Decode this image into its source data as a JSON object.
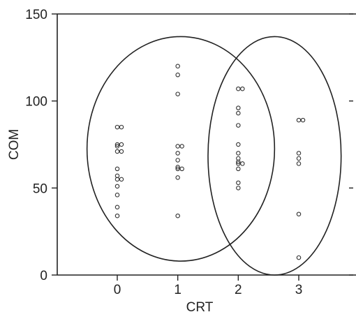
{
  "chart_data": {
    "type": "scatter",
    "title": "",
    "xlabel": "CRT",
    "ylabel": "COM",
    "xlim": [
      -1,
      4
    ],
    "ylim": [
      0,
      150
    ],
    "x_ticks": [
      0,
      1,
      2,
      3
    ],
    "y_ticks": [
      0,
      50,
      100,
      150
    ],
    "x_tick_labels": [
      "0",
      "1",
      "2",
      "3"
    ],
    "y_tick_labels": [
      "0",
      "50",
      "100",
      "150"
    ],
    "grid": false,
    "colors": {
      "points": "#333333",
      "lines": "#222222"
    },
    "series": [
      {
        "points": [
          [
            0,
            85
          ],
          [
            0,
            85
          ],
          [
            0,
            75
          ],
          [
            0,
            75
          ],
          [
            0,
            71
          ],
          [
            0,
            71
          ],
          [
            0,
            74
          ],
          [
            0,
            61
          ],
          [
            0,
            57
          ],
          [
            0,
            55
          ],
          [
            0,
            55
          ],
          [
            0,
            51
          ],
          [
            0,
            46
          ],
          [
            0,
            39
          ],
          [
            0,
            34
          ],
          [
            1,
            120
          ],
          [
            1,
            115
          ],
          [
            1,
            104
          ],
          [
            1,
            74
          ],
          [
            1,
            74
          ],
          [
            1,
            70
          ],
          [
            1,
            66
          ],
          [
            1,
            62
          ],
          [
            1,
            61
          ],
          [
            1,
            61
          ],
          [
            1,
            56
          ],
          [
            1,
            34
          ],
          [
            2,
            107
          ],
          [
            2,
            107
          ],
          [
            2,
            96
          ],
          [
            2,
            93
          ],
          [
            2,
            86
          ],
          [
            2,
            75
          ],
          [
            2,
            70
          ],
          [
            2,
            67
          ],
          [
            2,
            65
          ],
          [
            2,
            64
          ],
          [
            2,
            61
          ],
          [
            2,
            53
          ],
          [
            2,
            50
          ],
          [
            2,
            64
          ],
          [
            3,
            89
          ],
          [
            3,
            89
          ],
          [
            3,
            70
          ],
          [
            3,
            67
          ],
          [
            3,
            64
          ],
          [
            3,
            35
          ],
          [
            3,
            10
          ]
        ]
      }
    ],
    "ellipses": [
      {
        "cx": 1.05,
        "cy": 72.5,
        "rx": 1.55,
        "ry": 64.5
      },
      {
        "cx": 2.6,
        "cy": 68.5,
        "rx": 1.1,
        "ry": 68.5
      }
    ]
  }
}
